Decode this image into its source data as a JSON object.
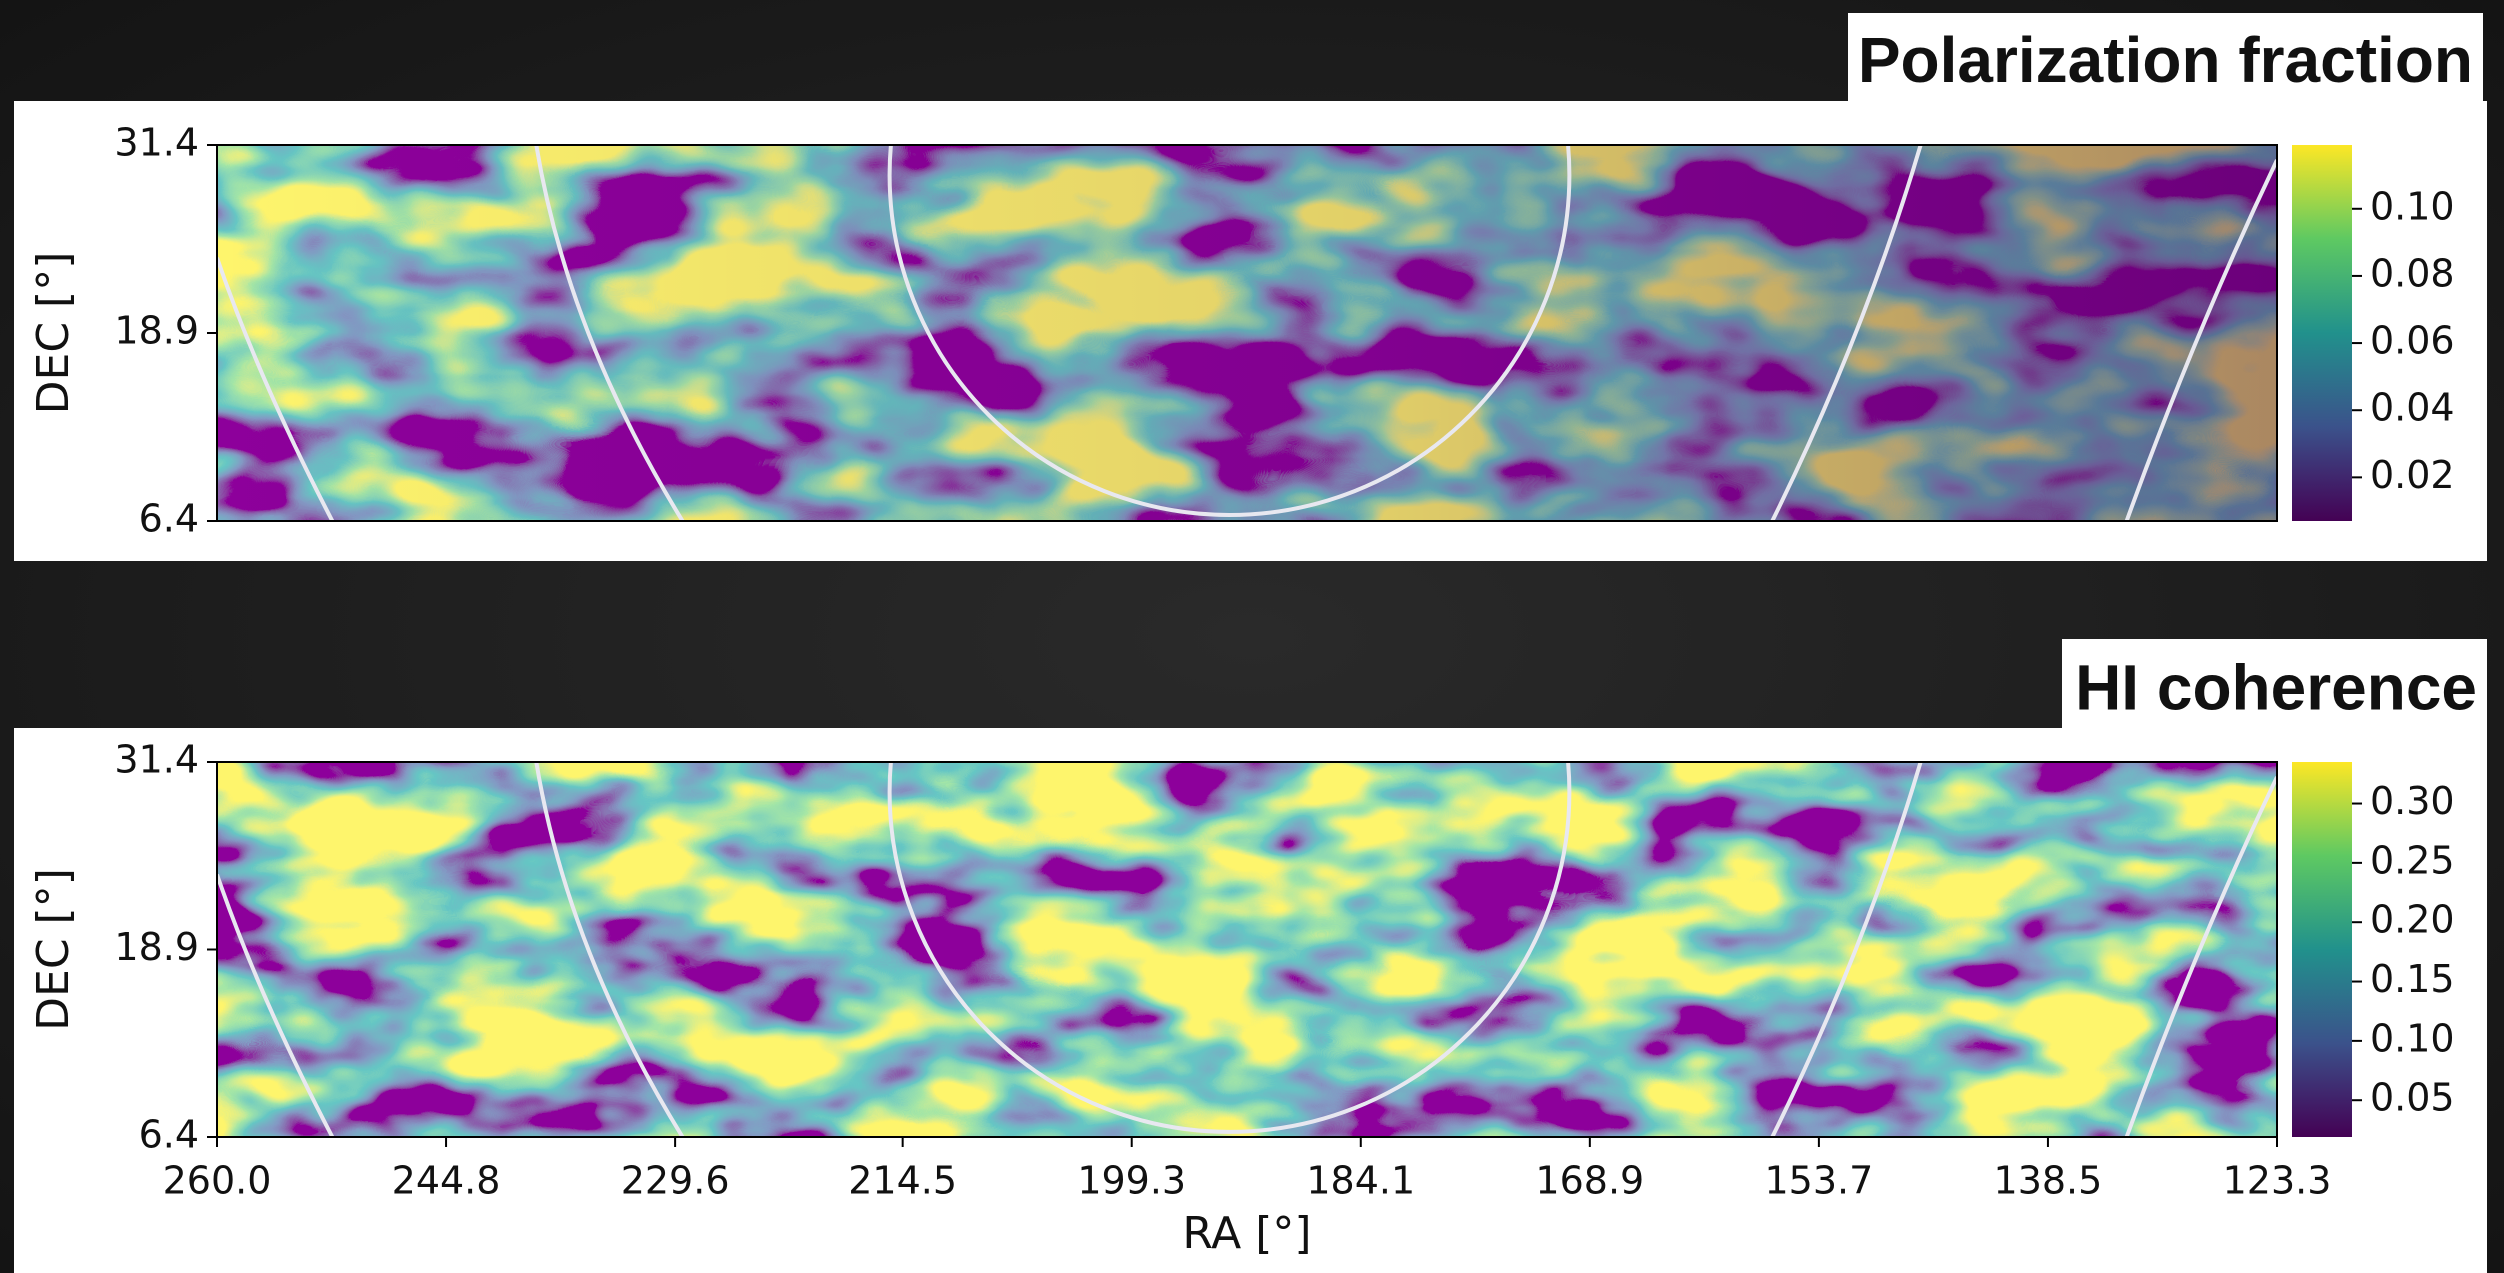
{
  "chart_data": [
    {
      "type": "heatmap",
      "title": "Polarization fraction",
      "colormap": "viridis",
      "ylabel": "DEC [°]",
      "xlim": [
        260.0,
        123.3
      ],
      "ylim": [
        6.4,
        31.4
      ],
      "yticks": [
        6.4,
        18.9,
        31.4
      ],
      "clim": [
        0.007,
        0.119
      ],
      "cticks": [
        {
          "value": 0.02,
          "label": "0.02"
        },
        0.04,
        0.06,
        0.08,
        {
          "value": 0.1,
          "label": "0.10"
        }
      ]
    },
    {
      "type": "heatmap",
      "title": "HI coherence",
      "colormap": "viridis",
      "ylabel": "DEC [°]",
      "xlabel": "RA [°]",
      "xlim": [
        260.0,
        123.3
      ],
      "ylim": [
        6.4,
        31.4
      ],
      "yticks": [
        6.4,
        18.9,
        31.4
      ],
      "xticks": [
        {
          "value": 260.0,
          "label": "260.0"
        },
        244.8,
        229.6,
        214.5,
        199.3,
        184.1,
        168.9,
        153.7,
        138.5,
        123.3
      ],
      "clim": [
        0.019,
        0.335
      ],
      "cticks": [
        0.05,
        {
          "value": 0.1,
          "label": "0.10"
        },
        0.15,
        {
          "value": 0.2,
          "label": "0.20"
        },
        0.25,
        {
          "value": 0.3,
          "label": "0.30"
        }
      ]
    }
  ]
}
